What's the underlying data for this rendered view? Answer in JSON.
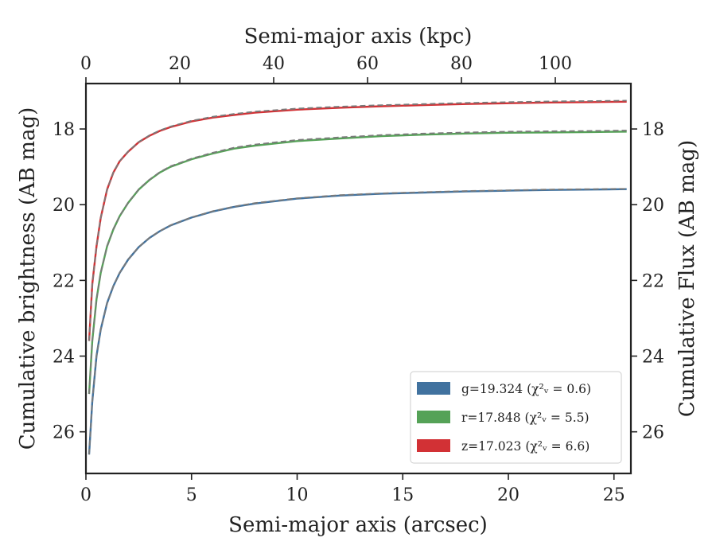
{
  "chart_data": {
    "type": "line",
    "xlabel": "Semi-major axis (arcsec)",
    "ylabel": "Cumulative brightness (AB mag)",
    "x2label": "Semi-major axis (kpc)",
    "y2label": "Cumulative Flux (AB mag)",
    "xlim": [
      0,
      25.8
    ],
    "ylim": [
      27.1,
      16.8
    ],
    "y_inverted": true,
    "x2lim": [
      0,
      116.1
    ],
    "xticks": [
      0,
      5,
      10,
      15,
      20,
      25
    ],
    "yticks": [
      18,
      20,
      22,
      24,
      26
    ],
    "x2ticks": [
      0,
      20,
      40,
      60,
      80,
      100
    ],
    "grid": false,
    "legend_position": "lower-right",
    "series": [
      {
        "name": "g",
        "legend_label": "g=19.324",
        "chi2_label": "χ²ᵥ = 0.6",
        "color": "#41729f",
        "x": [
          0.15,
          0.3,
          0.5,
          0.7,
          1.0,
          1.3,
          1.6,
          2.0,
          2.5,
          3.0,
          3.5,
          4.0,
          5.0,
          6.0,
          7.0,
          8.0,
          10.0,
          12.0,
          14.0,
          16.0,
          18.0,
          20.0,
          22.0,
          24.0,
          25.6
        ],
        "y": [
          26.6,
          25.2,
          24.0,
          23.3,
          22.6,
          22.15,
          21.8,
          21.45,
          21.12,
          20.88,
          20.7,
          20.55,
          20.34,
          20.18,
          20.06,
          19.97,
          19.84,
          19.76,
          19.71,
          19.68,
          19.65,
          19.63,
          19.61,
          19.6,
          19.59
        ]
      },
      {
        "name": "r",
        "legend_label": "r=17.848",
        "chi2_label": "χ²ᵥ = 5.5",
        "color": "#55a257",
        "x": [
          0.15,
          0.3,
          0.5,
          0.7,
          1.0,
          1.3,
          1.6,
          2.0,
          2.5,
          3.0,
          3.5,
          4.0,
          5.0,
          6.0,
          7.0,
          8.0,
          10.0,
          12.0,
          14.0,
          16.0,
          18.0,
          20.0,
          22.0,
          24.0,
          25.6
        ],
        "y": [
          25.0,
          23.6,
          22.5,
          21.8,
          21.1,
          20.65,
          20.3,
          19.95,
          19.6,
          19.35,
          19.15,
          19.0,
          18.8,
          18.65,
          18.52,
          18.44,
          18.32,
          18.25,
          18.19,
          18.15,
          18.12,
          18.1,
          18.09,
          18.08,
          18.07
        ]
      },
      {
        "name": "z",
        "legend_label": "z=17.023",
        "chi2_label": "χ²ᵥ = 6.6",
        "color": "#d23135",
        "x": [
          0.15,
          0.3,
          0.5,
          0.7,
          1.0,
          1.3,
          1.6,
          2.0,
          2.5,
          3.0,
          3.5,
          4.0,
          5.0,
          6.0,
          7.0,
          8.0,
          10.0,
          12.0,
          14.0,
          16.0,
          18.0,
          20.0,
          22.0,
          24.0,
          25.6
        ],
        "y": [
          23.6,
          22.1,
          21.1,
          20.35,
          19.6,
          19.15,
          18.85,
          18.6,
          18.35,
          18.18,
          18.05,
          17.95,
          17.8,
          17.7,
          17.63,
          17.57,
          17.49,
          17.44,
          17.4,
          17.37,
          17.34,
          17.32,
          17.3,
          17.29,
          17.28
        ]
      }
    ],
    "model_line_color": "#7a7a7a"
  }
}
